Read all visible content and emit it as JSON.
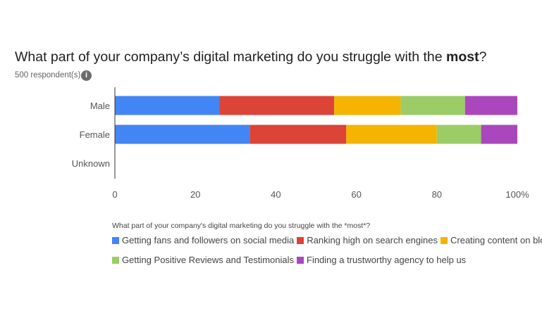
{
  "header": {
    "title_prefix": "What part of your company’s digital marketing do you struggle with the ",
    "title_bold": "most",
    "title_suffix": "?",
    "respondents": "500 respondent(s)",
    "info_glyph": "i"
  },
  "chart_data": {
    "type": "bar",
    "orientation": "horizontal",
    "stacked": true,
    "categories": [
      "Male",
      "Female",
      "Unknown"
    ],
    "series": [
      {
        "name": "Getting fans and followers on social media",
        "color": "#4285f4",
        "values": [
          26,
          33.5,
          0
        ]
      },
      {
        "name": "Ranking high on search engines",
        "color": "#db4437",
        "values": [
          28.5,
          24,
          0
        ]
      },
      {
        "name": "Creating content on blog",
        "color": "#f4b400",
        "values": [
          16.5,
          22.5,
          0
        ]
      },
      {
        "name": "Getting Positive Reviews and Testimonials",
        "color": "#9ccc65",
        "values": [
          16,
          11,
          0
        ]
      },
      {
        "name": "Finding a trustworthy agency to help us",
        "color": "#ab47bc",
        "values": [
          13,
          9,
          0
        ]
      }
    ],
    "xlim": [
      0,
      100
    ],
    "xticks": [
      "0",
      "20",
      "40",
      "60",
      "80",
      "100%"
    ],
    "legend_title": "What part of your company's digital marketing do you struggle with the *most*?",
    "legend_position": "bottom",
    "grid": false
  }
}
